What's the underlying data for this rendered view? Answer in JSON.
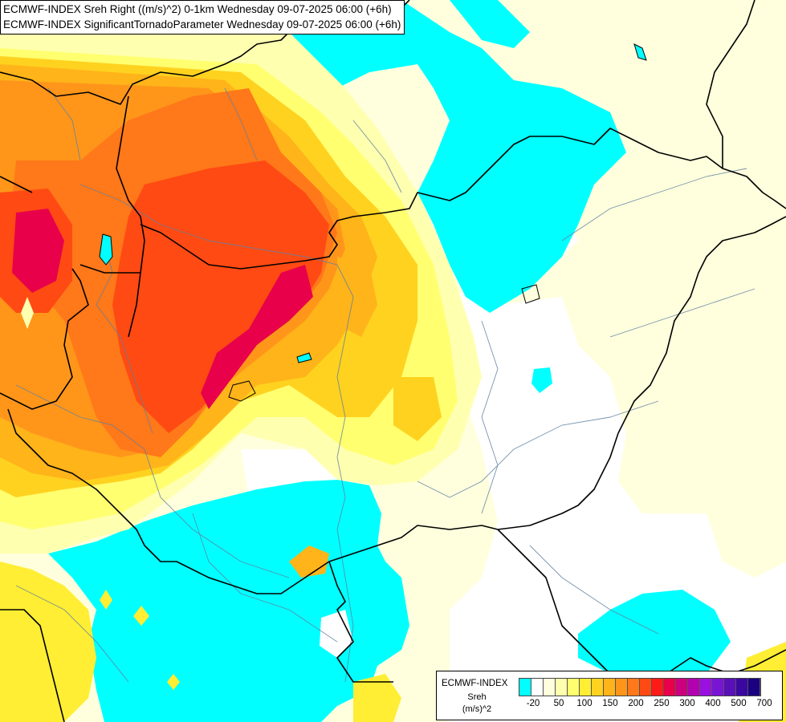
{
  "header": {
    "title_line1": "ECMWF-INDEX Sreh Right ((m/s)^2) 0-1km Wednesday 09-07-2025 06:00 (+6h)",
    "title_line2": "ECMWF-INDEX SignificantTornadoParameter Wednesday 09-07-2025 06:00 (+6h)"
  },
  "legend": {
    "title": "ECMWF-INDEX",
    "subtitle_1": "Sreh",
    "subtitle_2": "(m/s)^2",
    "colors": [
      "#00ffff",
      "#ffffff",
      "#ffffdd",
      "#ffffb0",
      "#ffff70",
      "#ffee33",
      "#ffd21f",
      "#ffb41a",
      "#ff961a",
      "#ff7819",
      "#ff4a13",
      "#ff1a1a",
      "#e8004a",
      "#cc007e",
      "#b300b0",
      "#9a10e0",
      "#7a14d4",
      "#5a10b8",
      "#3a08a0",
      "#1a0080"
    ],
    "ticks": [
      "-20",
      "50",
      "100",
      "150",
      "200",
      "250",
      "300",
      "400",
      "500",
      "700"
    ]
  },
  "map_style": {
    "cyan": "#00ffff",
    "white": "#ffffff",
    "very_light_yellow": "#ffffdd",
    "light_yellow": "#ffffb0",
    "yellow": "#ffff70",
    "gold": "#ffee33",
    "orange_yellow": "#ffd21f",
    "orange": "#ffb41a",
    "dark_orange": "#ff961a",
    "red_orange": "#ff7819",
    "red": "#ff4a13",
    "crimson": "#e8004a",
    "border_color": "#000000",
    "river_color": "#6080a0"
  }
}
